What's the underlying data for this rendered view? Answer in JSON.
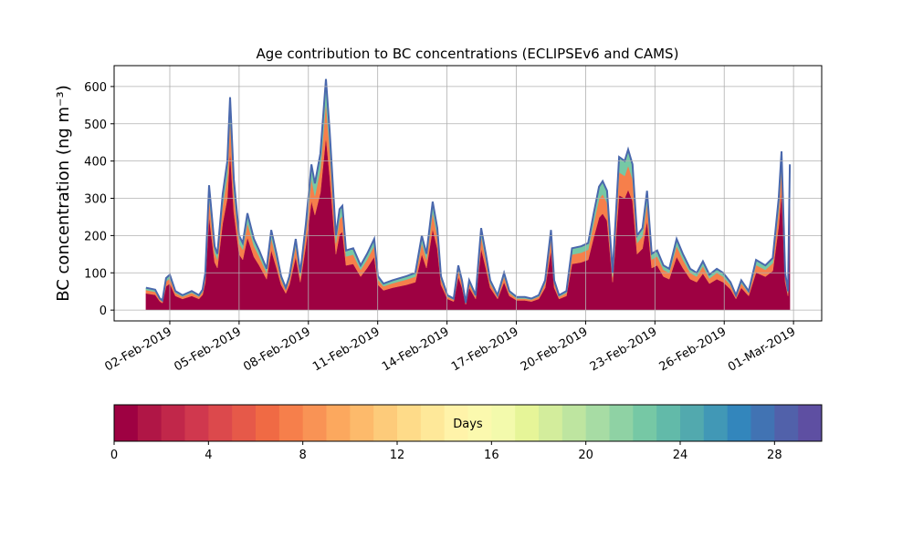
{
  "chart_data": {
    "type": "stacked_area",
    "title": "Age contribution to BC concentrations (ECLIPSEv6 and CAMS)",
    "y_label": "BC concentration (ng m⁻³)",
    "x": [
      0.97,
      1.37,
      1.57,
      1.68,
      1.84,
      2.0,
      2.24,
      2.55,
      2.95,
      3.26,
      3.42,
      3.54,
      3.7,
      3.94,
      4.06,
      4.29,
      4.49,
      4.61,
      4.77,
      5.0,
      5.16,
      5.36,
      5.64,
      5.87,
      6.19,
      6.39,
      6.62,
      6.82,
      7.02,
      7.18,
      7.45,
      7.65,
      7.89,
      8.13,
      8.28,
      8.52,
      8.76,
      8.92,
      9.19,
      9.35,
      9.47,
      9.63,
      9.94,
      10.26,
      10.54,
      10.85,
      11.01,
      11.25,
      11.64,
      12.24,
      12.63,
      12.91,
      13.11,
      13.38,
      13.58,
      13.74,
      14.02,
      14.29,
      14.49,
      14.65,
      14.81,
      14.96,
      15.24,
      15.48,
      15.68,
      15.87,
      16.19,
      16.47,
      16.7,
      17.02,
      17.37,
      17.65,
      17.97,
      18.25,
      18.5,
      18.64,
      18.85,
      19.17,
      19.41,
      19.8,
      20.11,
      20.35,
      20.58,
      20.74,
      20.93,
      21.17,
      21.45,
      21.69,
      21.84,
      22.03,
      22.23,
      22.46,
      22.66,
      22.86,
      23.1,
      23.37,
      23.62,
      23.94,
      24.21,
      24.53,
      24.81,
      25.08,
      25.36,
      25.68,
      25.95,
      26.27,
      26.51,
      26.74,
      27.06,
      27.38,
      27.78,
      28.1,
      28.36,
      28.48,
      28.64,
      28.76,
      28.84
    ],
    "series": [
      {
        "color": "#9e0142",
        "values": [
          45,
          41,
          23,
          19,
          64,
          71,
          38,
          30,
          38,
          30,
          41,
          75,
          251,
          128,
          113,
          233,
          300,
          428,
          263,
          150,
          135,
          195,
          143,
          120,
          83,
          161,
          113,
          68,
          45,
          68,
          143,
          75,
          173,
          293,
          255,
          315,
          465,
          360,
          150,
          203,
          210,
          120,
          124,
          90,
          113,
          143,
          68,
          53,
          60,
          68,
          75,
          150,
          113,
          218,
          165,
          68,
          30,
          23,
          90,
          60,
          15,
          60,
          30,
          165,
          113,
          60,
          30,
          75,
          38,
          26,
          26,
          23,
          30,
          60,
          161,
          60,
          30,
          38,
          124,
          128,
          135,
          195,
          248,
          259,
          240,
          75,
          308,
          300,
          323,
          293,
          150,
          165,
          240,
          113,
          120,
          90,
          83,
          143,
          113,
          83,
          75,
          98,
          71,
          83,
          75,
          56,
          30,
          60,
          38,
          101,
          90,
          105,
          225,
          319,
          75,
          38,
          293
        ]
      },
      {
        "color": "#f67f4b",
        "values": [
          9,
          8,
          5,
          4,
          13,
          14,
          8,
          6,
          8,
          6,
          8,
          15,
          50,
          26,
          23,
          47,
          60,
          86,
          53,
          30,
          27,
          39,
          29,
          24,
          17,
          32,
          23,
          14,
          9,
          14,
          29,
          15,
          35,
          59,
          51,
          63,
          93,
          72,
          30,
          41,
          42,
          24,
          25,
          18,
          23,
          29,
          14,
          11,
          12,
          14,
          15,
          30,
          23,
          44,
          33,
          14,
          6,
          5,
          18,
          12,
          3,
          12,
          6,
          33,
          23,
          12,
          6,
          15,
          8,
          5,
          5,
          5,
          6,
          12,
          32,
          12,
          6,
          8,
          25,
          26,
          27,
          39,
          50,
          52,
          48,
          15,
          62,
          60,
          65,
          59,
          30,
          33,
          48,
          23,
          24,
          18,
          17,
          29,
          23,
          17,
          15,
          20,
          14,
          17,
          15,
          11,
          6,
          12,
          8,
          20,
          18,
          21,
          45,
          64,
          15,
          8,
          59
        ]
      },
      {
        "color": "#76c8a5",
        "values": [
          6,
          6,
          3,
          3,
          9,
          10,
          5,
          4,
          5,
          4,
          6,
          10,
          34,
          17,
          15,
          31,
          40,
          57,
          35,
          20,
          18,
          26,
          19,
          16,
          11,
          22,
          15,
          9,
          6,
          9,
          19,
          10,
          23,
          39,
          34,
          42,
          62,
          48,
          20,
          27,
          28,
          16,
          17,
          12,
          15,
          19,
          9,
          7,
          8,
          9,
          10,
          20,
          15,
          29,
          22,
          9,
          4,
          3,
          12,
          8,
          2,
          8,
          4,
          22,
          15,
          8,
          4,
          10,
          5,
          4,
          4,
          3,
          4,
          8,
          22,
          8,
          4,
          5,
          17,
          17,
          18,
          26,
          33,
          35,
          32,
          10,
          41,
          40,
          43,
          39,
          20,
          22,
          32,
          15,
          16,
          12,
          11,
          19,
          15,
          11,
          10,
          13,
          10,
          11,
          10,
          8,
          4,
          8,
          5,
          14,
          12,
          14,
          30,
          43,
          10,
          5,
          39
        ]
      }
    ],
    "top_line_color": "#4a68ad",
    "xlim": [
      -0.41,
      30.22
    ],
    "ylim": [
      -29,
      656
    ],
    "yticks": [
      0,
      100,
      200,
      300,
      400,
      500,
      600
    ],
    "xticks": [
      {
        "value": 2,
        "label": "02-Feb-2019"
      },
      {
        "value": 5,
        "label": "05-Feb-2019"
      },
      {
        "value": 8,
        "label": "08-Feb-2019"
      },
      {
        "value": 11,
        "label": "11-Feb-2019"
      },
      {
        "value": 14,
        "label": "14-Feb-2019"
      },
      {
        "value": 17,
        "label": "17-Feb-2019"
      },
      {
        "value": 20,
        "label": "20-Feb-2019"
      },
      {
        "value": 23,
        "label": "23-Feb-2019"
      },
      {
        "value": 26,
        "label": "26-Feb-2019"
      },
      {
        "value": 29,
        "label": "01-Mar-2019"
      }
    ],
    "grid": true,
    "colorbar": {
      "label": "Days",
      "lim": [
        0,
        30
      ],
      "ticks": [
        0,
        4,
        8,
        12,
        16,
        20,
        24,
        28
      ],
      "colors": [
        "#9e0142",
        "#b01646",
        "#c1274a",
        "#d0384e",
        "#dc494c",
        "#e65949",
        "#f06a44",
        "#f67f4b",
        "#f99355",
        "#fca85e",
        "#fdba6b",
        "#fdcb7a",
        "#fedb89",
        "#fee899",
        "#fff3a9",
        "#fbf9ae",
        "#f3faac",
        "#e6f598",
        "#d3ed9c",
        "#bee5a0",
        "#a7dca4",
        "#8fd2a4",
        "#76c8a5",
        "#62baa9",
        "#52a9ae",
        "#4198b6",
        "#3386bc",
        "#4173b3",
        "#5161aa",
        "#5e4fa2"
      ]
    }
  }
}
